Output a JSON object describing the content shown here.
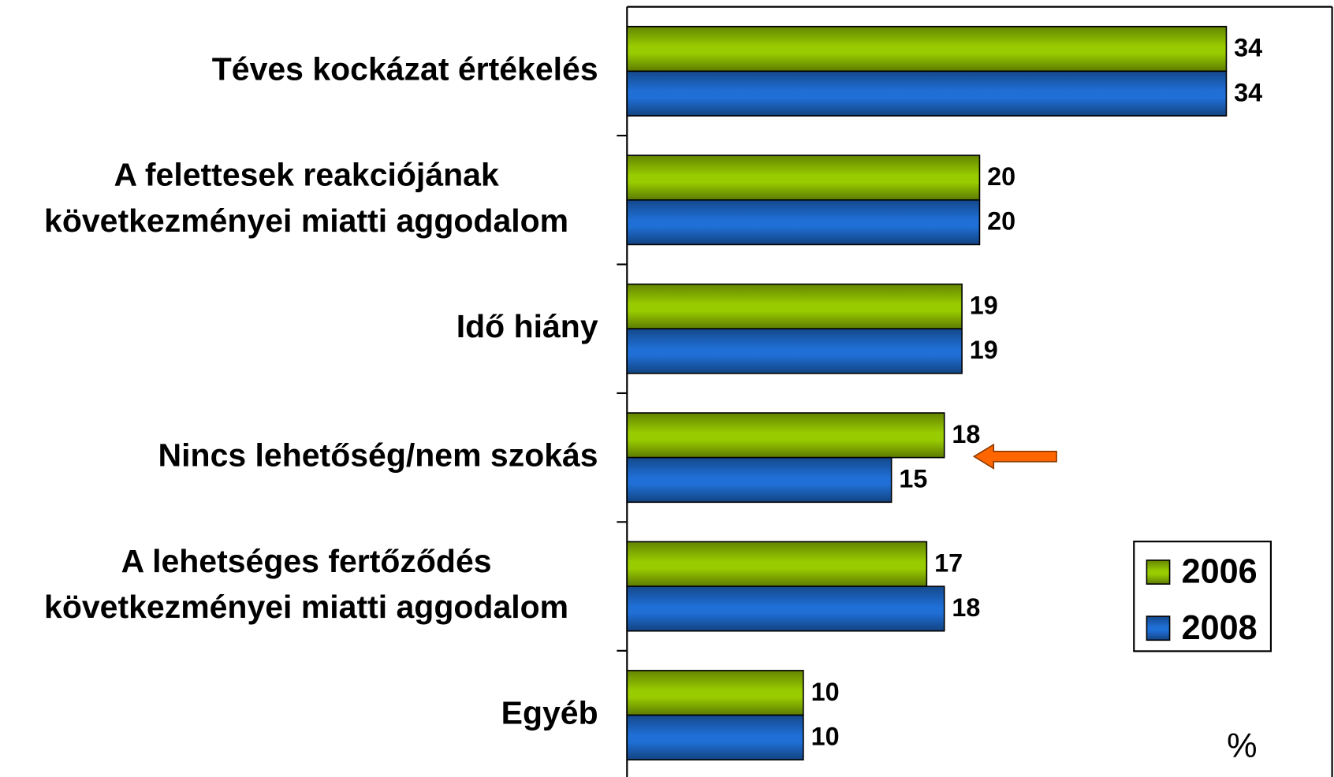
{
  "chart_data": {
    "type": "bar",
    "orientation": "horizontal",
    "categories": [
      [
        "Téves kockázat értékelés"
      ],
      [
        "A felettesek reakciójának",
        "következményei miatti aggodalom"
      ],
      [
        "Idő hiány"
      ],
      [
        "Nincs lehetőség/nem szokás"
      ],
      [
        "A lehetséges fertőződés",
        "következményei miatti aggodalom"
      ],
      [
        "Egyéb"
      ]
    ],
    "series": [
      {
        "name": "2006",
        "color": "#99cc00",
        "values": [
          34,
          20,
          19,
          18,
          17,
          10
        ]
      },
      {
        "name": "2008",
        "color": "#1f6fd6",
        "values": [
          34,
          20,
          19,
          15,
          18,
          10
        ]
      }
    ],
    "xlim": [
      0,
      40
    ],
    "legend": "lower right",
    "annotations": [
      "%"
    ]
  }
}
